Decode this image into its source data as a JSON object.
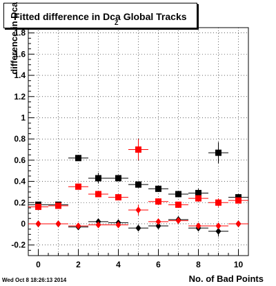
{
  "title": "Fitted difference in Dca Global Tracks",
  "title_subscript": "Z",
  "timestamp": "Wed Oct  8 18:26:13 2014",
  "chart_data": {
    "type": "scatter",
    "title": "Fitted difference in Dca Global Tracks",
    "xlabel": "No. of Bad Points",
    "ylabel": "difference in Dca",
    "xlim": [
      -0.5,
      10.5
    ],
    "ylim": [
      -0.3,
      1.85
    ],
    "grid": true,
    "x_ticks": [
      0,
      2,
      4,
      6,
      8,
      10
    ],
    "y_ticks": [
      -0.2,
      0,
      0.2,
      0.4,
      0.6,
      0.8,
      1,
      1.2,
      1.4,
      1.6,
      1.8
    ],
    "series": [
      {
        "marker": "square",
        "color": "#000000",
        "x": [
          0,
          1,
          2,
          3,
          4,
          5,
          6,
          7,
          8,
          9,
          10
        ],
        "y": [
          0.18,
          0.18,
          0.62,
          0.43,
          0.43,
          0.37,
          0.33,
          0.28,
          0.29,
          0.67,
          0.25
        ],
        "yerr": [
          0.02,
          0.02,
          0.02,
          0.05,
          0.03,
          0.03,
          0.03,
          0.03,
          0.04,
          0.1,
          0.03
        ]
      },
      {
        "marker": "square",
        "color": "#ff0000",
        "x": [
          0,
          1,
          2,
          3,
          4,
          5,
          6,
          7,
          8,
          9,
          10
        ],
        "y": [
          0.16,
          0.17,
          0.35,
          0.28,
          0.25,
          0.7,
          0.21,
          0.18,
          0.24,
          0.2,
          0.22
        ],
        "yerr": [
          0.02,
          0.02,
          0.02,
          0.02,
          0.02,
          0.1,
          0.03,
          0.02,
          0.03,
          0.04,
          0.02
        ]
      },
      {
        "marker": "diamond",
        "color": "#000000",
        "x": [
          0,
          1,
          2,
          3,
          4,
          5,
          6,
          7,
          8,
          9,
          10
        ],
        "y": [
          0.0,
          0.0,
          -0.03,
          0.02,
          0.01,
          -0.04,
          -0.02,
          0.04,
          -0.04,
          -0.07,
          0.0
        ],
        "yerr": [
          0.01,
          0.01,
          0.01,
          0.02,
          0.02,
          0.03,
          0.02,
          0.02,
          0.03,
          0.05,
          0.01
        ]
      },
      {
        "marker": "diamond",
        "color": "#ff0000",
        "x": [
          0,
          1,
          2,
          3,
          4,
          5,
          6,
          7,
          8,
          9,
          10
        ],
        "y": [
          0.0,
          0.0,
          -0.02,
          -0.01,
          -0.01,
          0.13,
          0.02,
          0.03,
          -0.02,
          -0.02,
          0.0
        ],
        "yerr": [
          0.01,
          0.01,
          0.01,
          0.02,
          0.02,
          0.05,
          0.02,
          0.02,
          0.02,
          0.03,
          0.01
        ]
      }
    ]
  }
}
